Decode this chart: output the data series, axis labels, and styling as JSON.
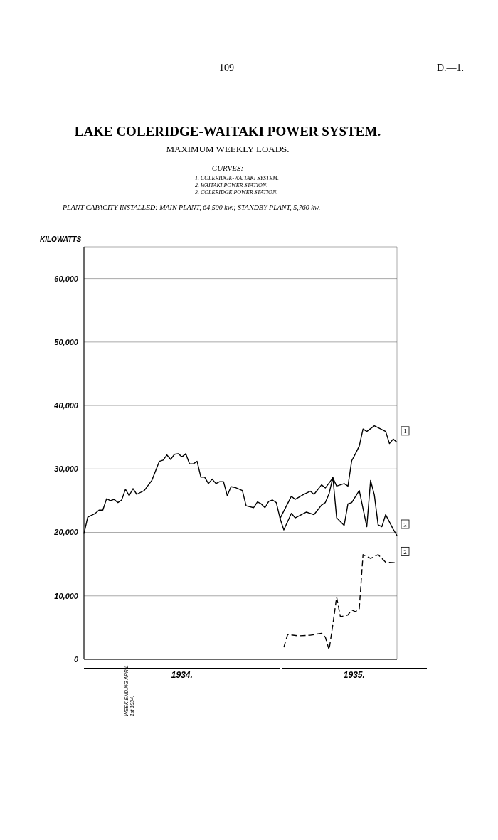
{
  "chart_data": {
    "type": "line",
    "title": "LAKE COLERIDGE-WAITAKI POWER SYSTEM.",
    "subtitle": "MAXIMUM WEEKLY LOADS.",
    "ylabel": "KILOWATTS",
    "annotations": [
      "109",
      "D.—1.",
      "CURVES:",
      "1. COLERIDGE-WAITAKI SYSTEM.",
      "2. WAITAKI POWER STATION.",
      "3. COLERIDGE POWER STATION.",
      "PLANT-CAPACITY INSTALLED: MAIN PLANT, 64,500 kw.; STANDBY PLANT, 5,760 kw.",
      "WEEK ENDING APRIL 1st 1934.",
      "1934.",
      "1935."
    ],
    "categories": [
      null,
      null,
      null,
      null,
      null,
      null,
      null,
      null,
      null,
      null,
      null,
      null,
      null,
      null,
      null,
      null,
      null,
      null,
      null,
      null,
      null,
      null,
      null,
      null,
      null,
      null,
      null,
      null,
      null,
      null,
      null,
      null,
      null,
      null,
      null,
      null,
      null,
      null,
      null,
      null,
      null,
      null,
      null,
      null,
      null,
      null,
      null,
      null,
      null,
      null,
      null,
      null,
      null,
      null,
      null,
      null,
      null,
      null,
      null,
      null,
      null,
      null,
      null,
      null,
      null,
      null,
      null,
      null,
      null,
      null,
      null,
      null,
      null,
      null,
      null,
      null,
      null,
      null,
      null,
      null,
      null,
      null,
      null,
      null
    ],
    "series": [
      {
        "name": "1",
        "color": "#000000",
        "line_style": "solid",
        "values": [
          null,
          null,
          null,
          null,
          null,
          null,
          null,
          null,
          null,
          null,
          null,
          null,
          null,
          null,
          null,
          null,
          null,
          null,
          null,
          null,
          null,
          null,
          null,
          null,
          null,
          null,
          null,
          null,
          null,
          null,
          null,
          null,
          null,
          null,
          null,
          null,
          null,
          null,
          null,
          null,
          null,
          null,
          null,
          null,
          null,
          null,
          null,
          null,
          null,
          null,
          null,
          null,
          22200,
          null,
          null,
          25700,
          25200,
          null,
          25900,
          null,
          26500,
          26000,
          null,
          27500,
          27000,
          null,
          28600,
          27300,
          null,
          27700,
          27300,
          31300,
          32400,
          33600,
          36300,
          35900,
          null,
          36800,
          null,
          null,
          35900,
          34000,
          34700,
          34200
        ]
      },
      {
        "name": "2",
        "color": "#000000",
        "line_style": "dashed",
        "values": [
          null,
          null,
          null,
          null,
          null,
          null,
          null,
          null,
          null,
          null,
          null,
          null,
          null,
          null,
          null,
          null,
          null,
          null,
          null,
          null,
          null,
          null,
          null,
          null,
          null,
          null,
          null,
          null,
          null,
          null,
          null,
          null,
          null,
          null,
          null,
          null,
          null,
          null,
          null,
          null,
          null,
          null,
          null,
          null,
          null,
          null,
          null,
          null,
          null,
          null,
          null,
          null,
          null,
          1900,
          3900,
          null,
          null,
          3700,
          null,
          null,
          3800,
          null,
          null,
          4100,
          3500,
          1500,
          5500,
          9800,
          6700,
          null,
          7000,
          7800,
          7500,
          8000,
          16500,
          null,
          15900,
          null,
          16500,
          null,
          15300,
          null,
          null,
          15200
        ]
      },
      {
        "name": "3",
        "color": "#000000",
        "line_style": "solid",
        "values": [
          19800,
          22400,
          null,
          23000,
          23500,
          23500,
          25300,
          25000,
          25200,
          24700,
          25100,
          26800,
          25800,
          26900,
          26000,
          null,
          26600,
          null,
          28200,
          29700,
          31200,
          31400,
          32200,
          31500,
          32300,
          32400,
          31900,
          32400,
          30800,
          30800,
          31200,
          28700,
          28700,
          27700,
          28400,
          27700,
          28000,
          28000,
          25800,
          27200,
          27100,
          null,
          26600,
          24200,
          null,
          23900,
          24800,
          24500,
          23900,
          24900,
          25100,
          24700,
          22200,
          20400,
          null,
          23000,
          22300,
          null,
          null,
          23200,
          null,
          22800,
          null,
          24300,
          24700,
          26100,
          28700,
          22300,
          null,
          21100,
          24500,
          24700,
          null,
          26600,
          null,
          20900,
          28200,
          25900,
          21200,
          20900,
          22800,
          null,
          20500,
          19500
        ]
      }
    ],
    "ylim": [
      0,
      65000
    ],
    "yticks": [
      0,
      {
        "value": 10000,
        "label": "10,000"
      },
      {
        "value": 20000,
        "label": "20,000"
      },
      {
        "value": 30000,
        "label": "30,000"
      },
      {
        "value": 40000,
        "label": "40,000"
      },
      {
        "value": 50000,
        "label": "50,000"
      },
      {
        "value": 60000,
        "label": "60,000"
      }
    ],
    "grid": true,
    "legend": false,
    "marker": "none"
  }
}
